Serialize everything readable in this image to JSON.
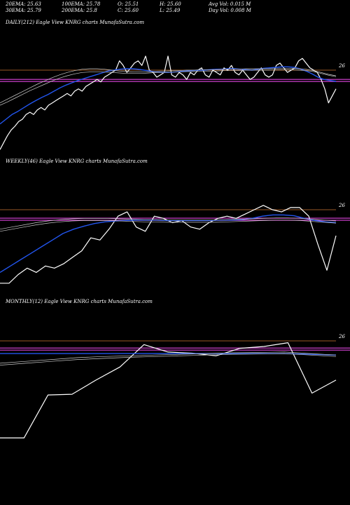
{
  "header": {
    "row1": [
      {
        "name": "ema20",
        "text": "20EMA: 25.63"
      },
      {
        "name": "ema100",
        "text": "100EMA: 25.78"
      },
      {
        "name": "open",
        "text": "O: 25.51"
      },
      {
        "name": "high",
        "text": "H: 25.60"
      },
      {
        "name": "avg-vol",
        "text": "Avg Vol: 0.015 M"
      }
    ],
    "row2": [
      {
        "name": "ema30",
        "text": "30EMA: 25.79"
      },
      {
        "name": "ema200",
        "text": "200EMA: 25.8"
      },
      {
        "name": "close",
        "text": "C: 25.60"
      },
      {
        "name": "low",
        "text": "L: 25.49"
      },
      {
        "name": "day-vol",
        "text": "Day Vol: 0.008 M"
      }
    ]
  },
  "colors": {
    "background": "#000000",
    "price": "#ffffff",
    "ema_short": "#2255ee",
    "ema_band": "#cccccc",
    "support": "#dd44dd",
    "resistance": "#cc7733"
  },
  "chart_data": [
    {
      "type": "line",
      "title": "DAILY(212) Eagle   View  KNRG charts MunafaSutra.com",
      "tick_labels": [
        "26"
      ],
      "y_ref_level": 26,
      "resistance_level": 26,
      "support_level": 25.78,
      "series": [
        {
          "role": "price",
          "values": [
            24.3,
            24.45,
            24.6,
            24.72,
            24.8,
            24.9,
            24.95,
            25.05,
            25.1,
            25.05,
            25.15,
            25.2,
            25.15,
            25.25,
            25.3,
            25.35,
            25.4,
            25.45,
            25.5,
            25.45,
            25.55,
            25.6,
            25.55,
            25.65,
            25.7,
            25.75,
            25.8,
            25.75,
            25.85,
            25.9,
            25.95,
            26.0,
            26.2,
            26.1,
            25.95,
            26.05,
            26.15,
            26.2,
            26.1,
            26.3,
            26.0,
            25.95,
            25.85,
            25.9,
            25.95,
            26.3,
            25.9,
            25.85,
            25.95,
            25.9,
            25.8,
            25.95,
            25.9,
            26.0,
            26.05,
            25.9,
            25.85,
            26.0,
            25.95,
            25.9,
            26.05,
            26.0,
            26.1,
            25.95,
            25.9,
            26.0,
            25.9,
            25.8,
            25.85,
            25.95,
            26.05,
            25.9,
            25.85,
            25.9,
            26.1,
            26.15,
            26.05,
            25.95,
            26.0,
            26.05,
            26.2,
            26.25,
            26.15,
            26.05,
            26.0,
            25.95,
            25.8,
            25.6,
            25.3,
            25.45,
            25.6
          ]
        },
        {
          "role": "ema-short",
          "values": [
            24.85,
            24.95,
            25.05,
            25.12,
            25.2,
            25.28,
            25.35,
            25.42,
            25.48,
            25.55,
            25.62,
            25.68,
            25.73,
            25.78,
            25.82,
            25.86,
            25.9,
            25.94,
            25.98,
            26.0,
            26.02,
            26.03,
            26.03,
            26.02,
            26.0,
            25.98,
            25.96,
            25.95,
            25.95,
            25.96,
            25.97,
            25.98,
            25.99,
            26.0,
            26.0,
            26.01,
            26.02,
            26.02,
            26.03,
            26.03,
            26.02,
            26.01,
            26.0,
            26.02,
            26.04,
            26.05,
            26.06,
            26.07,
            26.07,
            26.06,
            26.03,
            25.98,
            25.92,
            25.85,
            25.8,
            25.78,
            25.76
          ]
        },
        {
          "role": "ema-band-upper",
          "values": [
            25.3,
            25.38,
            25.46,
            25.54,
            25.62,
            25.7,
            25.77,
            25.84,
            25.9,
            25.95,
            25.99,
            26.02,
            26.03,
            26.03,
            26.02,
            26.0,
            25.98,
            25.97,
            25.96,
            25.96,
            25.96,
            25.97,
            25.98,
            25.99,
            25.99,
            26.0,
            26.0,
            26.01,
            26.01,
            26.01,
            26.02,
            26.02,
            26.02,
            26.03,
            26.03,
            26.03,
            26.03,
            26.04,
            26.04,
            26.04,
            26.03,
            26.02,
            25.99,
            25.95,
            25.91,
            25.88
          ]
        },
        {
          "role": "ema-band-lower",
          "values": [
            25.25,
            25.32,
            25.4,
            25.48,
            25.56,
            25.63,
            25.7,
            25.77,
            25.83,
            25.88,
            25.92,
            25.95,
            25.96,
            25.96,
            25.96,
            25.95,
            25.94,
            25.93,
            25.93,
            25.93,
            25.94,
            25.95,
            25.95,
            25.96,
            25.96,
            25.97,
            25.97,
            25.98,
            25.98,
            25.98,
            25.99,
            25.99,
            25.99,
            26.0,
            26.0,
            26.0,
            26.0,
            26.01,
            26.01,
            26.01,
            26.0,
            25.99,
            25.97,
            25.93,
            25.89,
            25.86
          ]
        }
      ]
    },
    {
      "type": "line",
      "title": "WEEKLY(46) Eagle   View  KNRG charts MunafaSutra.com",
      "tick_labels": [
        "26"
      ],
      "y_ref_level": 26,
      "resistance_level": 26,
      "support_level": 25.78,
      "series": [
        {
          "role": "price",
          "values": [
            24.3,
            24.3,
            24.5,
            24.65,
            24.55,
            24.7,
            24.65,
            24.75,
            24.9,
            25.05,
            25.35,
            25.3,
            25.55,
            25.85,
            25.95,
            25.6,
            25.5,
            25.85,
            25.8,
            25.7,
            25.75,
            25.6,
            25.55,
            25.7,
            25.8,
            25.85,
            25.8,
            25.9,
            26.0,
            26.1,
            26.0,
            25.95,
            26.05,
            26.05,
            25.85,
            25.2,
            24.6,
            25.4
          ]
        },
        {
          "role": "ema-short",
          "values": [
            24.55,
            24.7,
            24.85,
            25.0,
            25.15,
            25.3,
            25.45,
            25.55,
            25.62,
            25.68,
            25.72,
            25.74,
            25.75,
            25.76,
            25.76,
            25.76,
            25.75,
            25.75,
            25.75,
            25.75,
            25.75,
            25.76,
            25.76,
            25.77,
            25.8,
            25.85,
            25.88,
            25.88,
            25.86,
            25.8,
            25.75,
            25.72,
            25.7
          ]
        },
        {
          "role": "ema-band-upper",
          "values": [
            25.55,
            25.6,
            25.65,
            25.7,
            25.74,
            25.77,
            25.79,
            25.8,
            25.8,
            25.8,
            25.79,
            25.78,
            25.77,
            25.77,
            25.76,
            25.76,
            25.76,
            25.76,
            25.76,
            25.77,
            25.78,
            25.79,
            25.8,
            25.81,
            25.81,
            25.8,
            25.78,
            25.76,
            25.74
          ]
        },
        {
          "role": "ema-band-lower",
          "values": [
            25.5,
            25.55,
            25.6,
            25.65,
            25.69,
            25.72,
            25.74,
            25.75,
            25.75,
            25.75,
            25.74,
            25.73,
            25.72,
            25.72,
            25.71,
            25.71,
            25.71,
            25.71,
            25.71,
            25.72,
            25.73,
            25.74,
            25.75,
            25.76,
            25.76,
            25.75,
            25.73,
            25.71,
            25.69
          ]
        }
      ]
    },
    {
      "type": "line",
      "title": "MONTHLY(12) Eagle   View  KNRG charts MunafaSutra.com",
      "tick_labels": [
        "26"
      ],
      "y_ref_level": 26,
      "resistance_level": 26,
      "support_level": 25.78,
      "series": [
        {
          "role": "price",
          "values": [
            23.4,
            23.4,
            24.55,
            24.57,
            24.95,
            25.3,
            25.9,
            25.7,
            25.67,
            25.6,
            25.8,
            25.85,
            25.95,
            24.6,
            24.95
          ]
        },
        {
          "role": "ema-short",
          "values": [
            25.66,
            25.66,
            25.66,
            25.66,
            25.66,
            25.66,
            25.66,
            25.66,
            25.66,
            25.66,
            25.66,
            25.66,
            25.64,
            25.62
          ]
        },
        {
          "role": "ema-band-upper",
          "values": [
            25.4,
            25.45,
            25.5,
            25.55,
            25.58,
            25.6,
            25.62,
            25.64,
            25.66,
            25.68,
            25.69,
            25.7,
            25.66,
            25.62
          ]
        },
        {
          "role": "ema-band-lower",
          "values": [
            25.35,
            25.4,
            25.45,
            25.5,
            25.53,
            25.56,
            25.58,
            25.6,
            25.62,
            25.64,
            25.65,
            25.66,
            25.62,
            25.58
          ]
        }
      ]
    }
  ]
}
